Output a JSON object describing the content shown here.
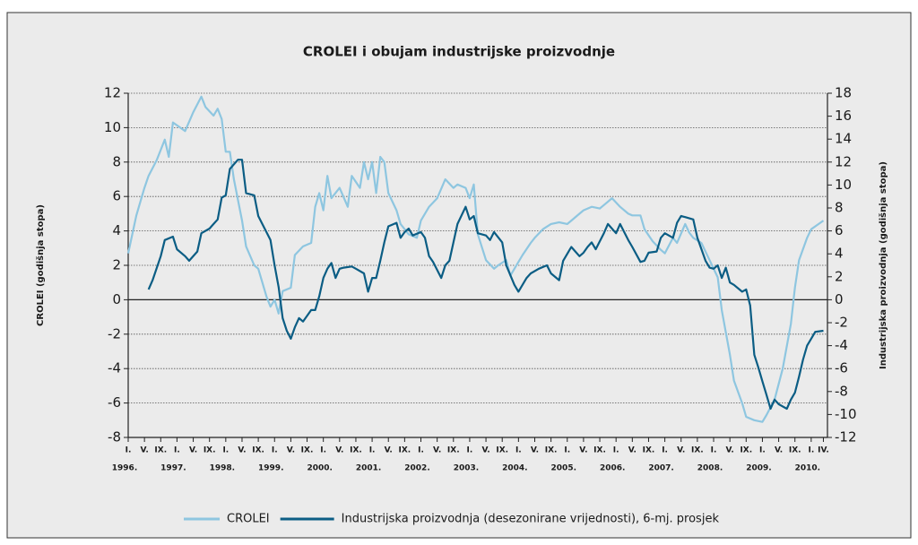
{
  "chart_data": {
    "type": "line",
    "title": "CROLEI i obujam industrijske proizvodnje",
    "ylabel": "CROLEI (godišnja stopa)",
    "y2label": "Industrijska proizvodnja (godišnja stopa)",
    "xlim": [
      "1996-01",
      "2010-05"
    ],
    "xticks": [
      {
        "value": "1996-01",
        "label": "I."
      },
      {
        "value": "1996-05",
        "label": "V."
      },
      {
        "value": "1996-09",
        "label": "IX."
      },
      {
        "value": "1997-01",
        "label": "I."
      },
      {
        "value": "1997-05",
        "label": "V."
      },
      {
        "value": "1997-09",
        "label": "IX."
      },
      {
        "value": "1998-01",
        "label": "I."
      },
      {
        "value": "1998-05",
        "label": "V."
      },
      {
        "value": "1998-09",
        "label": "IX."
      },
      {
        "value": "1999-01",
        "label": "I."
      },
      {
        "value": "1999-05",
        "label": "V."
      },
      {
        "value": "1999-09",
        "label": "IX."
      },
      {
        "value": "2000-01",
        "label": "I."
      },
      {
        "value": "2000-05",
        "label": "V."
      },
      {
        "value": "2000-09",
        "label": "IX."
      },
      {
        "value": "2001-01",
        "label": "I."
      },
      {
        "value": "2001-05",
        "label": "V."
      },
      {
        "value": "2001-09",
        "label": "IX."
      },
      {
        "value": "2002-01",
        "label": "I."
      },
      {
        "value": "2002-05",
        "label": "V."
      },
      {
        "value": "2002-09",
        "label": "IX."
      },
      {
        "value": "2003-01",
        "label": "I."
      },
      {
        "value": "2003-05",
        "label": "V."
      },
      {
        "value": "2003-09",
        "label": "IX."
      },
      {
        "value": "2004-01",
        "label": "I."
      },
      {
        "value": "2004-05",
        "label": "V."
      },
      {
        "value": "2004-09",
        "label": "IX."
      },
      {
        "value": "2005-01",
        "label": "I."
      },
      {
        "value": "2005-05",
        "label": "V."
      },
      {
        "value": "2005-09",
        "label": "IX."
      },
      {
        "value": "2006-01",
        "label": "I."
      },
      {
        "value": "2006-05",
        "label": "V."
      },
      {
        "value": "2006-09",
        "label": "IX."
      },
      {
        "value": "2007-01",
        "label": "I."
      },
      {
        "value": "2007-05",
        "label": "V."
      },
      {
        "value": "2007-09",
        "label": "IX."
      },
      {
        "value": "2008-01",
        "label": "I."
      },
      {
        "value": "2008-05",
        "label": "V."
      },
      {
        "value": "2008-09",
        "label": "IX."
      },
      {
        "value": "2009-01",
        "label": "I."
      },
      {
        "value": "2009-05",
        "label": "V."
      },
      {
        "value": "2009-09",
        "label": "IX."
      },
      {
        "value": "2010-01",
        "label": "I."
      },
      {
        "value": "2010-04",
        "label": "IV."
      }
    ],
    "year_labels": [
      {
        "value": "1996-01",
        "label": "1996."
      },
      {
        "value": "1997-01",
        "label": "1997."
      },
      {
        "value": "1998-01",
        "label": "1998."
      },
      {
        "value": "1999-01",
        "label": "1999."
      },
      {
        "value": "2000-01",
        "label": "2000."
      },
      {
        "value": "2001-01",
        "label": "2001."
      },
      {
        "value": "2002-01",
        "label": "2002."
      },
      {
        "value": "2003-01",
        "label": "2003."
      },
      {
        "value": "2004-01",
        "label": "2004."
      },
      {
        "value": "2005-01",
        "label": "2005."
      },
      {
        "value": "2006-01",
        "label": "2006."
      },
      {
        "value": "2007-01",
        "label": "2007."
      },
      {
        "value": "2008-01",
        "label": "2008."
      },
      {
        "value": "2009-01",
        "label": "2009."
      },
      {
        "value": "2010-01",
        "label": "2010."
      }
    ],
    "ylim": [
      -8,
      12
    ],
    "yticks": [
      -8,
      -6,
      -4,
      -2,
      0,
      2,
      4,
      6,
      8,
      10,
      12
    ],
    "y2lim": [
      -12,
      18
    ],
    "y2ticks": [
      -12,
      -10,
      -8,
      -6,
      -4,
      -2,
      0,
      2,
      4,
      6,
      8,
      10,
      12,
      14,
      16,
      18
    ],
    "grid": true,
    "series": [
      {
        "name": "CROLEI",
        "color": "#8ec6e0",
        "x": [
          "1996-01",
          "1996-03",
          "1996-05",
          "1996-06",
          "1996-08",
          "1996-10",
          "1996-11",
          "1996-12",
          "1997-03",
          "1997-05",
          "1997-07",
          "1997-08",
          "1997-10",
          "1997-11",
          "1997-12",
          "1998-01",
          "1998-02",
          "1998-03",
          "1998-05",
          "1998-06",
          "1998-08",
          "1998-09",
          "1998-11",
          "1998-12",
          "1999-01",
          "1999-02",
          "1999-03",
          "1999-05",
          "1999-06",
          "1999-08",
          "1999-10",
          "1999-11",
          "1999-12",
          "2000-01",
          "2000-02",
          "2000-03",
          "2000-05",
          "2000-07",
          "2000-08",
          "2000-10",
          "2000-11",
          "2000-12",
          "2001-01",
          "2001-02",
          "2001-03",
          "2001-04",
          "2001-05",
          "2001-07",
          "2001-08",
          "2001-10",
          "2001-12",
          "2002-01",
          "2002-03",
          "2002-05",
          "2002-07",
          "2002-09",
          "2002-10",
          "2002-12",
          "2003-01",
          "2003-02",
          "2003-03",
          "2003-05",
          "2003-07",
          "2003-08",
          "2003-10",
          "2003-11",
          "2003-12",
          "2004-02",
          "2004-04",
          "2004-05",
          "2004-07",
          "2004-09",
          "2004-11",
          "2005-01",
          "2005-02",
          "2005-04",
          "2005-05",
          "2005-07",
          "2005-09",
          "2005-10",
          "2005-12",
          "2006-02",
          "2006-04",
          "2006-05",
          "2006-07",
          "2006-08",
          "2006-10",
          "2006-12",
          "2007-01",
          "2007-03",
          "2007-04",
          "2007-06",
          "2007-07",
          "2007-08",
          "2007-10",
          "2007-12",
          "2008-02",
          "2008-03",
          "2008-05",
          "2008-06",
          "2008-08",
          "2008-09",
          "2008-11",
          "2009-01",
          "2009-02",
          "2009-04",
          "2009-06",
          "2009-08",
          "2009-09",
          "2009-10",
          "2009-12",
          "2010-01",
          "2010-04"
        ],
        "values": [
          2.7,
          4.9,
          6.5,
          7.2,
          8.1,
          9.3,
          8.3,
          10.3,
          9.8,
          10.9,
          11.8,
          11.2,
          10.7,
          11.1,
          10.5,
          8.6,
          8.6,
          7.0,
          4.6,
          3.1,
          2.0,
          1.8,
          0.2,
          -0.4,
          0,
          -0.8,
          0.5,
          0.7,
          2.6,
          3.1,
          3.3,
          5.4,
          6.2,
          5.2,
          7.2,
          5.9,
          6.5,
          5.4,
          7.2,
          6.5,
          8.0,
          7.0,
          8.0,
          6.2,
          8.3,
          8.0,
          6.2,
          5.2,
          4.4,
          3.8,
          3.6,
          4.6,
          5.4,
          5.9,
          7.0,
          6.5,
          6.7,
          6.5,
          5.9,
          6.7,
          3.8,
          2.3,
          1.8,
          2.0,
          2.3,
          1.4,
          1.8,
          2.6,
          3.3,
          3.6,
          4.1,
          4.4,
          4.5,
          4.4,
          4.6,
          5.0,
          5.2,
          5.4,
          5.3,
          5.5,
          5.9,
          5.4,
          5.0,
          4.9,
          4.9,
          4.1,
          3.4,
          2.9,
          2.7,
          3.6,
          3.3,
          4.4,
          3.9,
          3.6,
          3.3,
          2.3,
          1.3,
          -0.6,
          -3.2,
          -4.7,
          -6.0,
          -6.8,
          -7.0,
          -7.1,
          -6.7,
          -5.8,
          -4.0,
          -1.4,
          0.7,
          2.3,
          3.6,
          4.1,
          4.6
        ]
      },
      {
        "name": "Industrijska proizvodnja (desezonirane vrijednosti), 6-mj. prosjek",
        "color": "#0b5d84",
        "axis": "y2",
        "x": [
          "1996-06",
          "1996-07",
          "1996-09",
          "1996-10",
          "1996-12",
          "1997-01",
          "1997-03",
          "1997-04",
          "1997-06",
          "1997-07",
          "1997-09",
          "1997-10",
          "1997-11",
          "1997-12",
          "1998-01",
          "1998-02",
          "1998-04",
          "1998-05",
          "1998-06",
          "1998-08",
          "1998-09",
          "1998-11",
          "1998-12",
          "1999-01",
          "1999-02",
          "1999-03",
          "1999-04",
          "1999-05",
          "1999-06",
          "1999-07",
          "1999-08",
          "1999-10",
          "1999-11",
          "1999-12",
          "2000-01",
          "2000-02",
          "2000-03",
          "2000-04",
          "2000-05",
          "2000-06",
          "2000-08",
          "2000-09",
          "2000-11",
          "2000-12",
          "2001-01",
          "2001-02",
          "2001-03",
          "2001-04",
          "2001-05",
          "2001-07",
          "2001-08",
          "2001-09",
          "2001-10",
          "2001-11",
          "2002-01",
          "2002-02",
          "2002-03",
          "2002-04",
          "2002-06",
          "2002-07",
          "2002-08",
          "2002-09",
          "2002-10",
          "2002-12",
          "2003-01",
          "2003-02",
          "2003-03",
          "2003-05",
          "2003-06",
          "2003-07",
          "2003-09",
          "2003-10",
          "2003-12",
          "2004-01",
          "2004-03",
          "2004-04",
          "2004-06",
          "2004-08",
          "2004-09",
          "2004-11",
          "2004-12",
          "2005-02",
          "2005-03",
          "2005-04",
          "2005-05",
          "2005-06",
          "2005-07",
          "2005-08",
          "2005-10",
          "2005-11",
          "2006-01",
          "2006-02",
          "2006-04",
          "2006-05",
          "2006-07",
          "2006-08",
          "2006-09",
          "2006-11",
          "2006-12",
          "2007-01",
          "2007-03",
          "2007-04",
          "2007-05",
          "2007-06",
          "2007-08",
          "2007-09",
          "2007-11",
          "2007-12",
          "2008-01",
          "2008-02",
          "2008-03",
          "2008-04",
          "2008-05",
          "2008-06",
          "2008-08",
          "2008-09",
          "2008-10",
          "2008-11",
          "2008-12",
          "2009-01",
          "2009-02",
          "2009-03",
          "2009-04",
          "2009-05",
          "2009-07",
          "2009-08",
          "2009-09",
          "2009-10",
          "2009-11",
          "2009-12",
          "2010-02",
          "2010-04"
        ],
        "values": [
          0.9,
          1.7,
          3.8,
          5.2,
          5.5,
          4.4,
          3.8,
          3.4,
          4.2,
          5.8,
          6.2,
          6.6,
          7.0,
          8.9,
          9.1,
          11.4,
          12.2,
          12.2,
          9.3,
          9.1,
          7.3,
          5.9,
          5.2,
          3.0,
          1.1,
          -1.6,
          -2.7,
          -3.4,
          -2.4,
          -1.6,
          -1.9,
          -0.9,
          -0.9,
          0.3,
          1.9,
          2.7,
          3.2,
          1.9,
          2.7,
          2.8,
          2.9,
          2.7,
          2.3,
          0.7,
          1.9,
          1.9,
          3.4,
          5.0,
          6.4,
          6.7,
          5.4,
          5.9,
          6.2,
          5.6,
          5.9,
          5.4,
          3.8,
          3.3,
          1.9,
          3.0,
          3.4,
          5.0,
          6.6,
          8.1,
          7.0,
          7.3,
          5.8,
          5.6,
          5.2,
          5.9,
          5.0,
          3.0,
          1.3,
          0.7,
          1.9,
          2.3,
          2.7,
          3.0,
          2.3,
          1.7,
          3.4,
          4.6,
          4.2,
          3.8,
          4.1,
          4.6,
          5.0,
          4.4,
          5.8,
          6.6,
          5.8,
          6.6,
          5.2,
          4.6,
          3.3,
          3.4,
          4.1,
          4.2,
          5.4,
          5.8,
          5.4,
          6.7,
          7.3,
          7.2,
          7.0,
          5.4,
          3.4,
          2.8,
          2.7,
          3.0,
          1.9,
          2.8,
          1.5,
          1.3,
          0.7,
          0.9,
          -0.5,
          -4.8,
          -5.9,
          -7.1,
          -8.3,
          -9.5,
          -8.7,
          -9.1,
          -9.5,
          -8.7,
          -8.1,
          -6.7,
          -5.2,
          -4.0,
          -2.8,
          -2.7
        ]
      }
    ]
  }
}
